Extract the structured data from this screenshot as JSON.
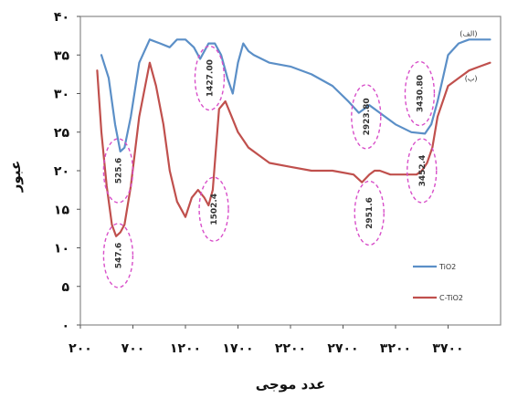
{
  "chart_data": {
    "type": "line",
    "xlabel": "عدد موجی",
    "ylabel": "عبور",
    "xlim": [
      200,
      4200
    ],
    "ylim": [
      0,
      40
    ],
    "x_ticks": [
      200,
      700,
      1200,
      1700,
      2200,
      2700,
      3200,
      3700
    ],
    "x_tick_labels": [
      "۲۰۰",
      "۷۰۰",
      "۱۲۰۰",
      "۱۷۰۰",
      "۲۲۰۰",
      "۲۷۰۰",
      "۳۲۰۰",
      "۳۷۰۰"
    ],
    "y_ticks": [
      0,
      5,
      10,
      15,
      20,
      25,
      30,
      35,
      40
    ],
    "y_tick_labels": [
      "۰",
      "۵",
      "۱۰",
      "۱۵",
      "۲۰",
      "۲۵",
      "۳۰",
      "۳۵",
      "۴۰"
    ],
    "grid": false,
    "legend": "right",
    "series": [
      {
        "name": "TiO2",
        "color": "#5b8fc7",
        "tag": "(الف)",
        "x": [
          400,
          470,
          530,
          580,
          620,
          680,
          760,
          860,
          960,
          1050,
          1120,
          1200,
          1280,
          1340,
          1420,
          1480,
          1540,
          1600,
          1650,
          1700,
          1750,
          1800,
          1850,
          2000,
          2200,
          2400,
          2600,
          2750,
          2850,
          2950,
          3050,
          3200,
          3350,
          3480,
          3540,
          3600,
          3650,
          3700,
          3800,
          3900,
          4000,
          4100
        ],
        "y": [
          35,
          32,
          26,
          22.5,
          23,
          27,
          34,
          37,
          36.5,
          36,
          37,
          37,
          36,
          34.5,
          36.5,
          36.5,
          35,
          32,
          30,
          34,
          36.5,
          35.5,
          35,
          34,
          33.5,
          32.5,
          31,
          29,
          27.5,
          28.5,
          27.5,
          26,
          25,
          24.8,
          26,
          29,
          32,
          35,
          36.5,
          37,
          37,
          37
        ]
      },
      {
        "name": "C-TiO2",
        "color": "#c0504d",
        "tag": "(ب)",
        "x": [
          360,
          400,
          450,
          500,
          540,
          580,
          620,
          680,
          760,
          860,
          920,
          990,
          1050,
          1120,
          1200,
          1260,
          1320,
          1380,
          1420,
          1460,
          1520,
          1580,
          1640,
          1700,
          1750,
          1800,
          1900,
          2000,
          2200,
          2400,
          2600,
          2800,
          2880,
          2950,
          3000,
          3050,
          3150,
          3300,
          3400,
          3450,
          3500,
          3550,
          3600,
          3700,
          3800,
          3900,
          4000,
          4100
        ],
        "y": [
          33,
          25,
          18,
          13,
          11.5,
          12,
          13,
          18,
          27,
          34,
          31,
          26,
          20,
          16,
          14,
          16.5,
          17.5,
          16.5,
          15.5,
          17.5,
          28,
          29,
          27,
          25,
          24,
          23,
          22,
          21,
          20.5,
          20,
          20,
          19.5,
          18.5,
          19.5,
          20,
          20,
          19.5,
          19.5,
          19.5,
          20,
          21,
          23,
          27,
          31,
          32,
          33,
          33.5,
          34
        ]
      }
    ],
    "annotations": [
      {
        "label": "525.6",
        "x": 560,
        "y": 20
      },
      {
        "label": "547.6",
        "x": 560,
        "y": 9
      },
      {
        "label": "1427.00",
        "x": 1430,
        "y": 32
      },
      {
        "label": "1502.4",
        "x": 1470,
        "y": 15
      },
      {
        "label": "2923.80",
        "x": 2920,
        "y": 27
      },
      {
        "label": "2951.6",
        "x": 2950,
        "y": 14.5
      },
      {
        "label": "3430.80",
        "x": 3430,
        "y": 30
      },
      {
        "label": "3452.4",
        "x": 3450,
        "y": 20
      }
    ]
  }
}
